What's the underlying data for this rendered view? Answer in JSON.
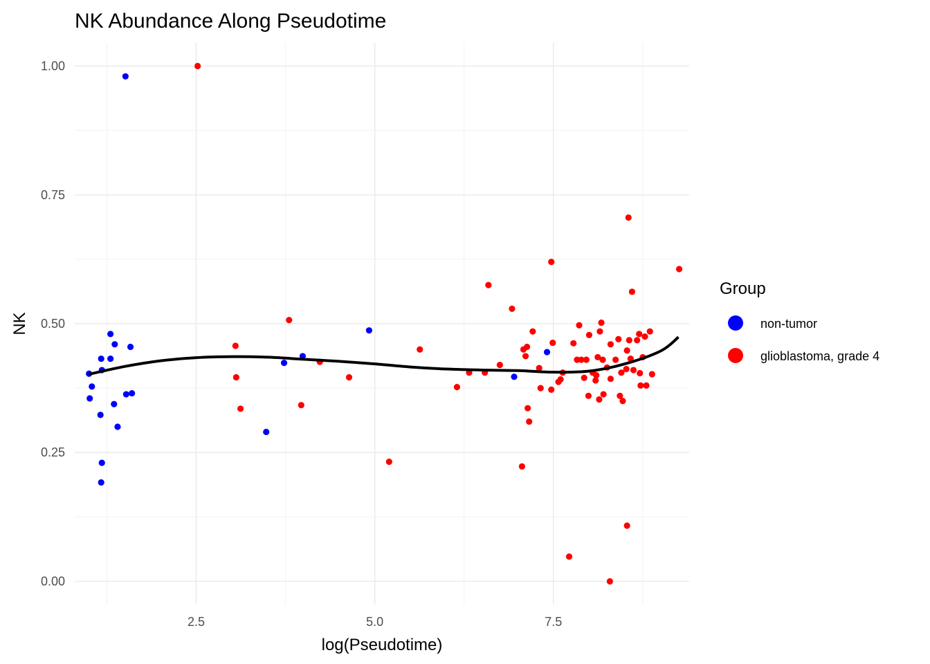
{
  "chart_data": {
    "type": "scatter",
    "title": "NK Abundance Along Pseudotime",
    "xlabel": "log(Pseudotime)",
    "ylabel": "NK",
    "xlim": [
      0.8,
      9.4
    ],
    "ylim": [
      -0.045,
      1.045
    ],
    "x_ticks": [
      {
        "value": 2.5,
        "label": "2.5"
      },
      {
        "value": 5.0,
        "label": "5.0"
      },
      {
        "value": 7.5,
        "label": "7.5"
      }
    ],
    "y_ticks": [
      {
        "value": 0.0,
        "label": "0.00"
      },
      {
        "value": 0.25,
        "label": "0.25"
      },
      {
        "value": 0.5,
        "label": "0.50"
      },
      {
        "value": 0.75,
        "label": "0.75"
      },
      {
        "value": 1.0,
        "label": "1.00"
      }
    ],
    "grid": true,
    "legend": {
      "title": "Group",
      "position": "right"
    },
    "series": [
      {
        "name": "non-tumor",
        "color": "#0000FF",
        "points": [
          [
            1.0,
            0.403
          ],
          [
            1.04,
            0.378
          ],
          [
            1.01,
            0.355
          ],
          [
            1.17,
            0.432
          ],
          [
            1.18,
            0.41
          ],
          [
            1.16,
            0.323
          ],
          [
            1.18,
            0.23
          ],
          [
            1.17,
            0.192
          ],
          [
            1.3,
            0.48
          ],
          [
            1.3,
            0.432
          ],
          [
            1.36,
            0.46
          ],
          [
            1.35,
            0.344
          ],
          [
            1.4,
            0.3
          ],
          [
            1.51,
            0.98
          ],
          [
            1.52,
            0.363
          ],
          [
            1.58,
            0.455
          ],
          [
            1.6,
            0.365
          ],
          [
            3.48,
            0.29
          ],
          [
            3.73,
            0.424
          ],
          [
            3.99,
            0.437
          ],
          [
            4.92,
            0.487
          ],
          [
            6.95,
            0.397
          ],
          [
            7.41,
            0.445
          ]
        ]
      },
      {
        "name": "glioblastoma, grade 4",
        "color": "#FF0000",
        "points": [
          [
            2.52,
            1.0
          ],
          [
            3.05,
            0.457
          ],
          [
            3.06,
            0.396
          ],
          [
            3.12,
            0.335
          ],
          [
            3.8,
            0.507
          ],
          [
            3.97,
            0.342
          ],
          [
            4.23,
            0.426
          ],
          [
            4.64,
            0.396
          ],
          [
            5.2,
            0.232
          ],
          [
            5.63,
            0.45
          ],
          [
            6.15,
            0.377
          ],
          [
            6.32,
            0.405
          ],
          [
            6.54,
            0.405
          ],
          [
            6.59,
            0.575
          ],
          [
            6.75,
            0.42
          ],
          [
            6.92,
            0.529
          ],
          [
            7.06,
            0.223
          ],
          [
            7.08,
            0.45
          ],
          [
            7.11,
            0.437
          ],
          [
            7.13,
            0.455
          ],
          [
            7.14,
            0.336
          ],
          [
            7.16,
            0.31
          ],
          [
            7.21,
            0.485
          ],
          [
            7.3,
            0.414
          ],
          [
            7.32,
            0.375
          ],
          [
            7.47,
            0.62
          ],
          [
            7.47,
            0.372
          ],
          [
            7.49,
            0.463
          ],
          [
            7.57,
            0.387
          ],
          [
            7.6,
            0.392
          ],
          [
            7.63,
            0.405
          ],
          [
            7.72,
            0.048
          ],
          [
            7.78,
            0.462
          ],
          [
            7.83,
            0.43
          ],
          [
            7.86,
            0.497
          ],
          [
            7.89,
            0.43
          ],
          [
            7.93,
            0.395
          ],
          [
            7.96,
            0.43
          ],
          [
            7.99,
            0.36
          ],
          [
            8.0,
            0.478
          ],
          [
            8.05,
            0.405
          ],
          [
            8.09,
            0.39
          ],
          [
            8.1,
            0.4
          ],
          [
            8.12,
            0.435
          ],
          [
            8.14,
            0.353
          ],
          [
            8.15,
            0.485
          ],
          [
            8.17,
            0.502
          ],
          [
            8.19,
            0.43
          ],
          [
            8.2,
            0.363
          ],
          [
            8.25,
            0.415
          ],
          [
            8.29,
            0.0
          ],
          [
            8.3,
            0.393
          ],
          [
            8.3,
            0.46
          ],
          [
            8.37,
            0.43
          ],
          [
            8.41,
            0.47
          ],
          [
            8.43,
            0.36
          ],
          [
            8.45,
            0.405
          ],
          [
            8.47,
            0.35
          ],
          [
            8.52,
            0.412
          ],
          [
            8.53,
            0.448
          ],
          [
            8.55,
            0.706
          ],
          [
            8.56,
            0.468
          ],
          [
            8.58,
            0.432
          ],
          [
            8.6,
            0.562
          ],
          [
            8.62,
            0.41
          ],
          [
            8.67,
            0.468
          ],
          [
            8.7,
            0.48
          ],
          [
            8.71,
            0.404
          ],
          [
            8.72,
            0.38
          ],
          [
            8.75,
            0.435
          ],
          [
            8.78,
            0.475
          ],
          [
            8.8,
            0.38
          ],
          [
            8.85,
            0.485
          ],
          [
            8.88,
            0.402
          ],
          [
            9.26,
            0.606
          ],
          [
            8.53,
            0.108
          ]
        ]
      }
    ],
    "smooth": {
      "color": "#000000",
      "points": [
        [
          1.0,
          0.402
        ],
        [
          1.5,
          0.417
        ],
        [
          2.0,
          0.428
        ],
        [
          2.5,
          0.434
        ],
        [
          3.0,
          0.436
        ],
        [
          3.5,
          0.435
        ],
        [
          4.0,
          0.431
        ],
        [
          4.5,
          0.427
        ],
        [
          5.0,
          0.422
        ],
        [
          5.5,
          0.416
        ],
        [
          6.0,
          0.412
        ],
        [
          6.5,
          0.41
        ],
        [
          7.0,
          0.409
        ],
        [
          7.5,
          0.406
        ],
        [
          8.0,
          0.408
        ],
        [
          8.5,
          0.422
        ],
        [
          9.0,
          0.447
        ],
        [
          9.25,
          0.474
        ]
      ]
    }
  }
}
